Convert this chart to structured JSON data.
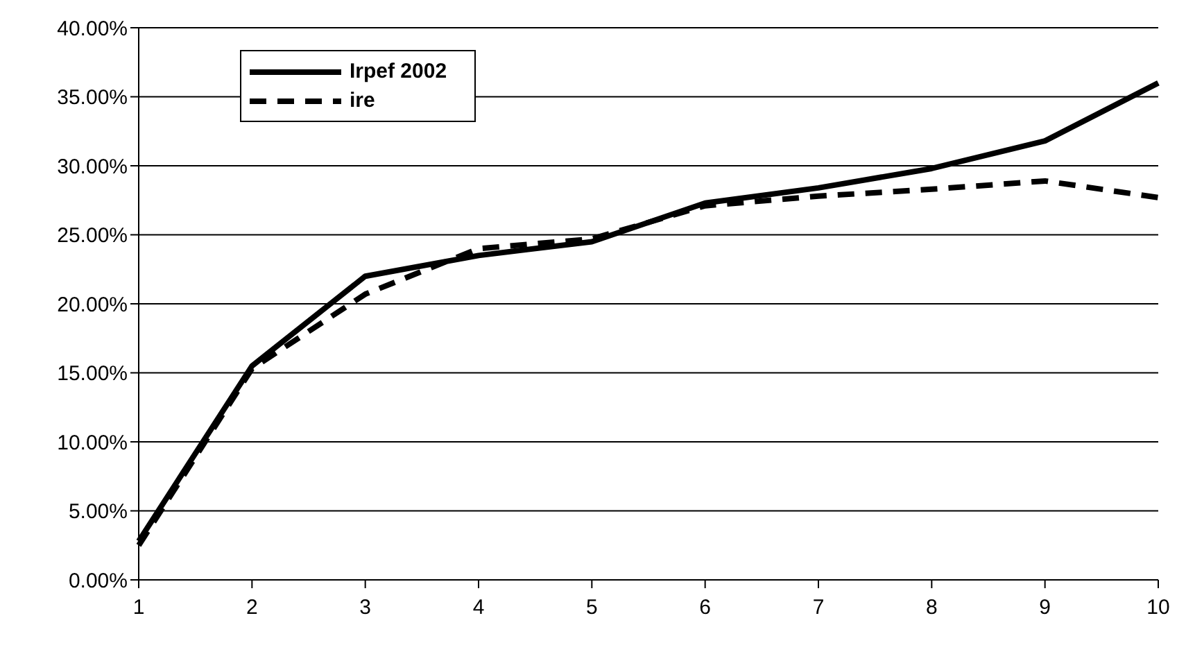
{
  "chart_data": {
    "type": "line",
    "categories": [
      "1",
      "2",
      "3",
      "4",
      "5",
      "6",
      "7",
      "8",
      "9",
      "10"
    ],
    "series": [
      {
        "name": "Irpef 2002",
        "color": "#000000",
        "line_style": "solid",
        "values": [
          2.8,
          15.5,
          22.0,
          23.5,
          24.5,
          27.3,
          28.4,
          29.8,
          31.8,
          36.0
        ]
      },
      {
        "name": "ire",
        "color": "#000000",
        "line_style": "dashed",
        "values": [
          2.5,
          15.3,
          20.7,
          24.0,
          24.7,
          27.1,
          27.8,
          28.3,
          28.9,
          27.7
        ]
      }
    ],
    "ylim": [
      0,
      40
    ],
    "yticks": [
      {
        "value": 0,
        "label": "0.00%"
      },
      {
        "value": 5,
        "label": "5.00%"
      },
      {
        "value": 10,
        "label": "10.00%"
      },
      {
        "value": 15,
        "label": "15.00%"
      },
      {
        "value": 20,
        "label": "20.00%"
      },
      {
        "value": 25,
        "label": "25.00%"
      },
      {
        "value": 30,
        "label": "30.00%"
      },
      {
        "value": 35,
        "label": "35.00%"
      },
      {
        "value": 40,
        "label": "40.00%"
      }
    ],
    "grid": "y",
    "legend": "top left",
    "marker": "none"
  }
}
